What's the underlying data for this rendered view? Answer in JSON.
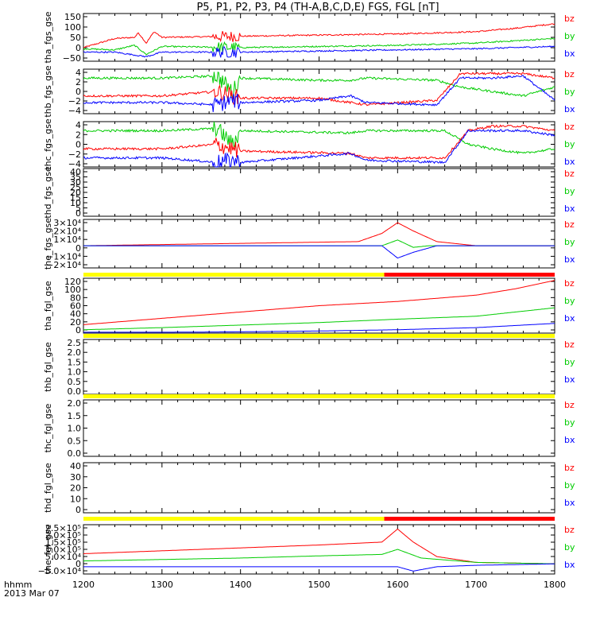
{
  "title": "P5, P1, P2, P3, P4 (TH-A,B,C,D,E) FGS, FGL [nT]",
  "colors": {
    "bx": "#0000ff",
    "by": "#00cc00",
    "bz": "#ff0000",
    "axis": "#000000",
    "yellow": "#ffff00",
    "red_bar": "#ff0000"
  },
  "time_axis": {
    "ticks": [
      "1200",
      "1300",
      "1400",
      "1500",
      "1600",
      "1700",
      "1800"
    ],
    "range": [
      1200,
      1800
    ],
    "label_line1": "hhmm",
    "label_line2": "2013 Mar 07"
  },
  "chart_data": [
    {
      "type": "line",
      "name": "tha_fgs_gse",
      "ylim": [
        -50,
        160
      ],
      "yticks": [
        "−50",
        "0",
        "50",
        "100",
        "150"
      ],
      "series": [
        {
          "name": "bz",
          "x": [
            1200,
            1240,
            1265,
            1270,
            1280,
            1290,
            1300,
            1400,
            1500,
            1600,
            1700,
            1750,
            1800
          ],
          "values": [
            10,
            50,
            55,
            75,
            30,
            80,
            55,
            60,
            65,
            70,
            80,
            95,
            115
          ]
        },
        {
          "name": "by",
          "x": [
            1200,
            1240,
            1265,
            1280,
            1300,
            1400,
            1500,
            1600,
            1700,
            1800
          ],
          "values": [
            5,
            0,
            20,
            -20,
            15,
            10,
            15,
            20,
            30,
            50
          ]
        },
        {
          "name": "bx",
          "x": [
            1200,
            1240,
            1280,
            1300,
            1400,
            1500,
            1600,
            1700,
            1800
          ],
          "values": [
            -10,
            -10,
            -30,
            -10,
            -10,
            -5,
            0,
            5,
            15
          ]
        }
      ]
    },
    {
      "type": "line",
      "name": "thb_fgs_gse",
      "ylim": [
        -5,
        5
      ],
      "yticks": [
        "−4",
        "−2",
        "0",
        "2",
        "4"
      ],
      "series": [
        {
          "name": "by",
          "x": [
            1200,
            1300,
            1370,
            1390,
            1400,
            1500,
            1540,
            1560,
            1650,
            1680,
            1720,
            1760,
            1800
          ],
          "values": [
            3,
            3,
            3.5,
            0,
            3,
            2.5,
            2.5,
            3,
            2.5,
            1,
            0,
            -1,
            1
          ]
        },
        {
          "name": "bz",
          "x": [
            1200,
            1300,
            1370,
            1390,
            1400,
            1500,
            1560,
            1650,
            1680,
            1720,
            1760,
            1800
          ],
          "values": [
            -1,
            -1,
            0,
            -1,
            -1.5,
            -1.5,
            -3,
            -2,
            4,
            4,
            4,
            3
          ]
        },
        {
          "name": "bx",
          "x": [
            1200,
            1300,
            1370,
            1390,
            1400,
            1500,
            1540,
            1560,
            1650,
            1680,
            1720,
            1760,
            1800
          ],
          "values": [
            -2.5,
            -2.5,
            -3,
            -2,
            -2.5,
            -2,
            -1,
            -2.5,
            -3,
            3,
            3,
            3.5,
            -2
          ]
        }
      ]
    },
    {
      "type": "line",
      "name": "thc_fgs_gse",
      "ylim": [
        -5,
        5
      ],
      "yticks": [
        "−4",
        "−2",
        "0",
        "2",
        "4"
      ],
      "series": [
        {
          "name": "by",
          "x": [
            1200,
            1300,
            1370,
            1390,
            1400,
            1540,
            1560,
            1660,
            1690,
            1720,
            1760,
            1800
          ],
          "values": [
            3,
            3,
            3.5,
            0,
            3,
            2.5,
            3,
            3,
            0,
            -1,
            -2,
            -1
          ]
        },
        {
          "name": "bz",
          "x": [
            1200,
            1300,
            1370,
            1390,
            1400,
            1540,
            1560,
            1660,
            1690,
            1720,
            1760,
            1800
          ],
          "values": [
            -1,
            -1,
            0,
            -1,
            -1.5,
            -2,
            -3,
            -3,
            3,
            4,
            4,
            3
          ]
        },
        {
          "name": "bx",
          "x": [
            1200,
            1300,
            1370,
            1390,
            1400,
            1540,
            1560,
            1660,
            1690,
            1720,
            1760,
            1800
          ],
          "values": [
            -3,
            -3,
            -4,
            -3.5,
            -4,
            -2,
            -3.5,
            -4,
            3,
            3,
            3,
            2
          ]
        }
      ]
    },
    {
      "type": "line",
      "name": "thd_fgs_gse",
      "ylim": [
        0,
        40
      ],
      "yticks": [
        "0",
        "5",
        "10",
        "15",
        "20",
        "25",
        "30",
        "35",
        "40"
      ],
      "series": []
    },
    {
      "type": "line",
      "name": "the_fgs_gse",
      "ylim": [
        -27000,
        32000
      ],
      "yticks": [
        "−2×10⁴",
        "−1×10⁴",
        "0",
        "1×10⁴",
        "2×10⁴",
        "3×10⁴"
      ],
      "series": [
        {
          "name": "bz",
          "x": [
            1200,
            1550,
            1580,
            1600,
            1620,
            1650,
            1700,
            1800
          ],
          "values": [
            0,
            5000,
            15000,
            28000,
            18000,
            5000,
            0,
            0
          ]
        },
        {
          "name": "by",
          "x": [
            1200,
            1580,
            1600,
            1620,
            1640,
            1800
          ],
          "values": [
            0,
            0,
            7000,
            -2000,
            0,
            0
          ]
        },
        {
          "name": "bx",
          "x": [
            1200,
            1580,
            1600,
            1620,
            1650,
            1800
          ],
          "values": [
            0,
            0,
            -15000,
            -8000,
            0,
            0
          ]
        }
      ]
    },
    {
      "type": "line",
      "name": "tha_fgl_gse",
      "ylim": [
        -5,
        125
      ],
      "yticks": [
        "0",
        "20",
        "40",
        "60",
        "80",
        "100",
        "120"
      ],
      "series": [
        {
          "name": "bz",
          "x": [
            1200,
            1300,
            1400,
            1500,
            1600,
            1700,
            1750,
            1800
          ],
          "values": [
            15,
            30,
            45,
            60,
            70,
            85,
            100,
            120
          ]
        },
        {
          "name": "by",
          "x": [
            1200,
            1300,
            1400,
            1500,
            1600,
            1700,
            1800
          ],
          "values": [
            3,
            8,
            14,
            20,
            28,
            35,
            55
          ]
        },
        {
          "name": "bx",
          "x": [
            1200,
            1300,
            1400,
            1500,
            1600,
            1700,
            1800
          ],
          "values": [
            -3,
            -3,
            -2,
            0,
            3,
            8,
            18
          ]
        }
      ]
    },
    {
      "type": "line",
      "name": "thb_fgl_gse",
      "ylim": [
        -0.1,
        2.7
      ],
      "yticks": [
        "0.0",
        "0.5",
        "1.0",
        "1.5",
        "2.0",
        "2.5"
      ],
      "series": []
    },
    {
      "type": "line",
      "name": "thc_fgl_gse",
      "ylim": [
        -0.1,
        2.2
      ],
      "yticks": [
        "0.0",
        "0.5",
        "1.0",
        "1.5",
        "2.0"
      ],
      "series": []
    },
    {
      "type": "line",
      "name": "thd_fgl_gse",
      "ylim": [
        -5,
        45
      ],
      "yticks": [
        "0",
        "10",
        "20",
        "30",
        "40"
      ],
      "series": []
    },
    {
      "type": "line",
      "name": "the_fgl_gse",
      "ylim": [
        -70000,
        270000
      ],
      "yticks": [
        "−5.0×10⁴",
        "0",
        "5.0×10⁴",
        "1.0×10⁵",
        "1.5×10⁵",
        "2.0×10⁵",
        "2.5×10⁵"
      ],
      "series": [
        {
          "name": "bz",
          "x": [
            1200,
            1300,
            1400,
            1500,
            1580,
            1600,
            1620,
            1650,
            1700,
            1800
          ],
          "values": [
            70000,
            90000,
            110000,
            130000,
            150000,
            240000,
            150000,
            50000,
            10000,
            0
          ]
        },
        {
          "name": "by",
          "x": [
            1200,
            1300,
            1400,
            1500,
            1580,
            1600,
            1630,
            1700,
            1800
          ],
          "values": [
            20000,
            30000,
            40000,
            55000,
            65000,
            100000,
            40000,
            10000,
            0
          ]
        },
        {
          "name": "bx",
          "x": [
            1200,
            1300,
            1500,
            1580,
            1600,
            1620,
            1650,
            1700,
            1800
          ],
          "values": [
            -20000,
            -20000,
            -20000,
            -20000,
            -20000,
            -50000,
            -20000,
            -10000,
            0
          ]
        }
      ]
    }
  ],
  "legend_labels": {
    "bz": "bz",
    "by": "by",
    "bx": "bx"
  },
  "status_bars": [
    {
      "after_panel": 4,
      "segments": [
        {
          "from": 1200,
          "to": 1583,
          "color": "yellow"
        },
        {
          "from": 1583,
          "to": 1800,
          "color": "red"
        }
      ]
    },
    {
      "after_panel": 5,
      "segments": [
        {
          "from": 1200,
          "to": 1800,
          "color": "yellow"
        }
      ]
    },
    {
      "after_panel": 6,
      "segments": [
        {
          "from": 1200,
          "to": 1800,
          "color": "yellow"
        }
      ]
    },
    {
      "after_panel": 8,
      "segments": [
        {
          "from": 1200,
          "to": 1583,
          "color": "yellow"
        },
        {
          "from": 1583,
          "to": 1800,
          "color": "red"
        }
      ]
    }
  ]
}
